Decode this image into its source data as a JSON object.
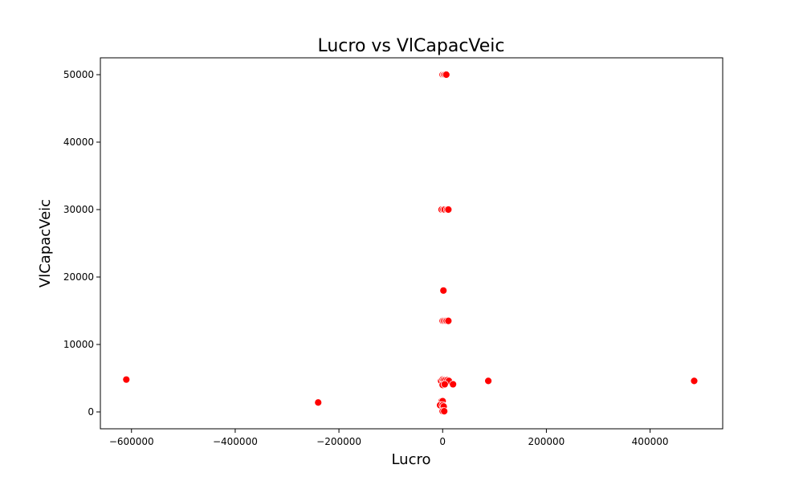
{
  "chart_data": {
    "type": "scatter",
    "title": "Lucro vs VlCapacVeic",
    "xlabel": "Lucro",
    "ylabel": "VlCapacVeic",
    "xlim": [
      -660000,
      540000
    ],
    "ylim": [
      -2500,
      52500
    ],
    "x_ticks": [
      -600000,
      -400000,
      -200000,
      0,
      200000,
      400000
    ],
    "x_tick_labels": [
      "−600000",
      "−400000",
      "−200000",
      "0",
      "200000",
      "400000"
    ],
    "y_ticks": [
      0,
      10000,
      20000,
      30000,
      40000,
      50000
    ],
    "y_tick_labels": [
      "0",
      "10000",
      "20000",
      "30000",
      "40000",
      "50000"
    ],
    "grid": false,
    "marker_color": "#ff0000",
    "marker_edge_color": "#ffffff",
    "series": [
      {
        "x": [
          0,
          2500,
          4500,
          7000,
          -2000,
          1500,
          4000,
          8500,
          11000,
          1500,
          0,
          2500,
          5500,
          8000,
          11000,
          -610000,
          -3000,
          0,
          2000,
          5000,
          9000,
          12000,
          0,
          88000,
          485000,
          20000,
          4000,
          -240000,
          -2000,
          0,
          -5000,
          0,
          2000,
          0,
          3000
        ],
        "y": [
          50000,
          50000,
          50000,
          50000,
          30000,
          30000,
          30000,
          30000,
          30000,
          18000,
          13500,
          13500,
          13500,
          13500,
          13500,
          4800,
          4600,
          4800,
          4700,
          4700,
          4700,
          4600,
          4000,
          4600,
          4600,
          4100,
          4100,
          1400,
          1600,
          1600,
          1000,
          1000,
          800,
          100,
          100
        ]
      }
    ]
  }
}
